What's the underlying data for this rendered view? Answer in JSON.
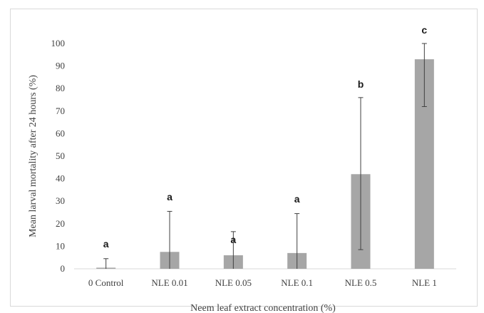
{
  "chart_data": {
    "type": "bar",
    "title": "",
    "xlabel": "Neem leaf extract concentration (%)",
    "ylabel": "Mean larval mortality after 24 hours (%)",
    "ylim": [
      0,
      100
    ],
    "yticks": [
      "0",
      "10",
      "20",
      "30",
      "40",
      "50",
      "60",
      "70",
      "80",
      "90",
      "100"
    ],
    "grid": false,
    "bar_color": "#a6a6a6",
    "categories": [
      "0 Control",
      "NLE 0.01",
      "NLE 0.05",
      "NLE 0.1",
      "NLE 0.5",
      "NLE 1"
    ],
    "values": [
      0.5,
      7.5,
      6,
      7,
      42,
      93
    ],
    "error_upper": [
      4.5,
      25.5,
      16.5,
      24.5,
      76,
      100
    ],
    "error_lower": [
      0,
      0,
      0,
      0,
      8.5,
      72
    ],
    "significance_labels": [
      "a",
      "a",
      "a",
      "a",
      "b",
      "c"
    ],
    "significance_label_y": [
      11,
      32,
      13,
      31,
      82,
      106
    ]
  }
}
